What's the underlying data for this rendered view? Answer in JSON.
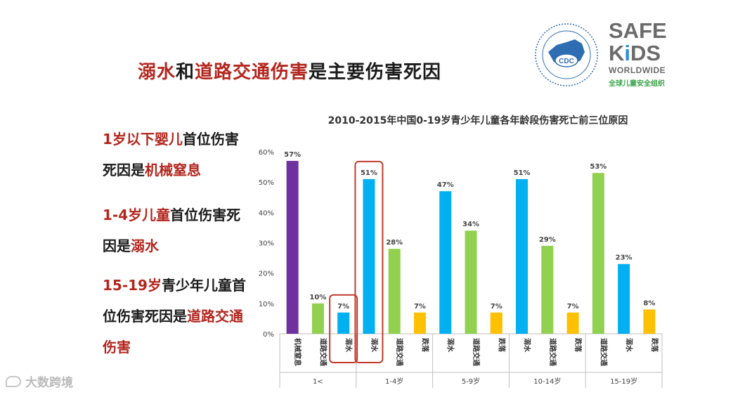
{
  "slide": {
    "title_parts": [
      {
        "text": "溺水",
        "red": true
      },
      {
        "text": "和",
        "red": false
      },
      {
        "text": "道路交通伤害",
        "red": true
      },
      {
        "text": "是主要伤害死因",
        "red": false
      }
    ]
  },
  "logos": {
    "cdc_label": "CDC",
    "safekids_line1": "SAFE",
    "safekids_k": "K",
    "safekids_i": "i",
    "safekids_ds": "DS",
    "safekids_line3": "WORLDWIDE",
    "safekids_line4": "全球儿童安全组织"
  },
  "left_notes": [
    [
      {
        "text": "1岁以下婴儿",
        "red": true
      },
      {
        "text": "首位伤害死因是",
        "red": false
      },
      {
        "text": "机械窒息",
        "red": true
      }
    ],
    [
      {
        "text": "1-4岁儿童",
        "red": true
      },
      {
        "text": "首位伤害死因是",
        "red": false
      },
      {
        "text": "溺水",
        "red": true
      }
    ],
    [
      {
        "text": "15-19岁",
        "red": true
      },
      {
        "text": "青少年儿童首位伤害死因是",
        "red": false
      },
      {
        "text": "道路交通伤害",
        "red": true
      }
    ]
  ],
  "watermark": "大数跨境",
  "chart_data": {
    "type": "bar",
    "title": "2010-2015年中国0-19岁青少年儿童各年龄段伤害死亡前三位原因",
    "ylim": [
      0,
      60
    ],
    "yticks": [
      "0%",
      "10%",
      "20%",
      "30%",
      "40%",
      "50%",
      "60%"
    ],
    "groups": [
      {
        "label": "1<",
        "bars": [
          {
            "cause": "机械窒息",
            "value": 57,
            "label": "57%",
            "color": "#7030a0"
          },
          {
            "cause": "道路交通",
            "value": 10,
            "label": "10%",
            "color": "#92d050"
          },
          {
            "cause": "溺水",
            "value": 7,
            "label": "7%",
            "color": "#00b0f0"
          }
        ]
      },
      {
        "label": "1-4岁",
        "bars": [
          {
            "cause": "溺水",
            "value": 51,
            "label": "51%",
            "color": "#00b0f0"
          },
          {
            "cause": "道路交通",
            "value": 28,
            "label": "28%",
            "color": "#92d050"
          },
          {
            "cause": "跌落",
            "value": 7,
            "label": "7%",
            "color": "#ffc000"
          }
        ]
      },
      {
        "label": "5-9岁",
        "bars": [
          {
            "cause": "溺水",
            "value": 47,
            "label": "47%",
            "color": "#00b0f0"
          },
          {
            "cause": "道路交通",
            "value": 34,
            "label": "34%",
            "color": "#92d050"
          },
          {
            "cause": "跌落",
            "value": 7,
            "label": "7%",
            "color": "#ffc000"
          }
        ]
      },
      {
        "label": "10-14岁",
        "bars": [
          {
            "cause": "溺水",
            "value": 51,
            "label": "51%",
            "color": "#00b0f0"
          },
          {
            "cause": "道路交通",
            "value": 29,
            "label": "29%",
            "color": "#92d050"
          },
          {
            "cause": "跌落",
            "value": 7,
            "label": "7%",
            "color": "#ffc000"
          }
        ]
      },
      {
        "label": "15-19岁",
        "bars": [
          {
            "cause": "道路交通",
            "value": 53,
            "label": "53%",
            "color": "#92d050"
          },
          {
            "cause": "溺水",
            "value": 23,
            "label": "23%",
            "color": "#00b0f0"
          },
          {
            "cause": "跌落",
            "value": 8,
            "label": "8%",
            "color": "#ffc000"
          }
        ]
      }
    ],
    "highlights": [
      {
        "group": 0,
        "bar": 2,
        "color": "#c0392b"
      },
      {
        "group": 1,
        "bar": 0,
        "color": "#c0392b"
      }
    ]
  }
}
